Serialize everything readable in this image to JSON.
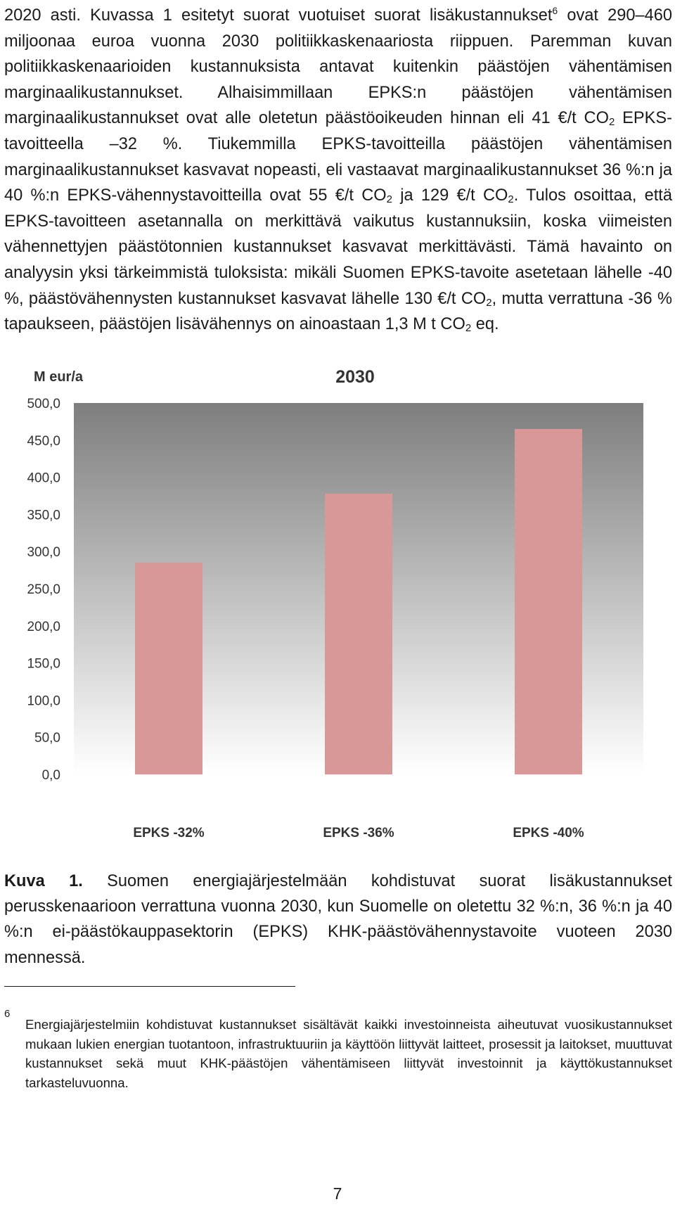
{
  "body": {
    "p1": "2020 asti. Kuvassa 1 esitetyt suorat vuotuiset suorat lisäkustannukset",
    "p1_sup": "6",
    "p2": " ovat 290–460 miljoonaa euroa vuonna 2030 politiikkaskenaariosta riippuen. Paremman kuvan politiikkaskenaarioiden kustannuksista antavat kuitenkin päästöjen vähentämisen marginaalikustannukset. Alhaisimmillaan EPKS:n päästöjen vähentämisen marginaalikustannukset ovat alle oletetun päästöoikeuden hinnan eli 41 €/t CO",
    "sub": "2",
    "p3": " EPKS-tavoitteella –32 %. Tiukemmilla EPKS-tavoitteilla päästöjen vähentämisen marginaalikustannukset kasvavat nopeasti, eli vastaavat marginaalikustannukset 36 %:n ja 40 %:n EPKS-vähennystavoitteilla ovat 55 €/t CO",
    "p4": " ja 129 €/t CO",
    "p5": ". Tulos osoittaa, että EPKS-tavoitteen asetannalla on merkittävä vaikutus kustannuksiin, koska viimeisten vähennettyjen päästötonnien kustannukset kasvavat merkittävästi. Tämä havainto on analyysin yksi tärkeimmistä tuloksista: mikäli Suomen EPKS-tavoite asetetaan lähelle -40 %, päästövähennysten kustannukset kasvavat lähelle 130 €/t CO",
    "p6": ", mutta verrattuna -36 % tapaukseen, päästöjen lisävähennys on ainoastaan 1,3 M t CO",
    "p7": " eq."
  },
  "chart_data": {
    "type": "bar",
    "title": "2030",
    "ylabel": "M eur/a",
    "xlabel": "",
    "categories": [
      "EPKS -32%",
      "EPKS -36%",
      "EPKS -40%"
    ],
    "values": [
      285,
      378,
      465
    ],
    "ylim": [
      0,
      500
    ],
    "yticks": [
      "0,0",
      "50,0",
      "100,0",
      "150,0",
      "200,0",
      "250,0",
      "300,0",
      "350,0",
      "400,0",
      "450,0",
      "500,0"
    ],
    "grid": false,
    "legend": "none",
    "colors": {
      "bar": "#d89898",
      "plot_top": "#7e7e7e",
      "plot_bottom": "#ffffff",
      "text": "#333333"
    }
  },
  "caption": {
    "label": "Kuva 1.",
    "text": " Suomen energiajärjestelmään kohdistuvat suorat lisäkustannukset perusskenaarioon verrattuna vuonna 2030, kun Suomelle on oletettu 32 %:n, 36 %:n ja 40 %:n ei-päästökauppasektorin (EPKS) KHK-päästövähennystavoite vuoteen 2030 mennessä."
  },
  "footnote": {
    "number": "6",
    "text": "Energiajärjestelmiin kohdistuvat kustannukset sisältävät kaikki investoinneista aiheutuvat vuosikustannukset mukaan lukien energian tuotantoon, infrastruktuuriin ja käyttöön liittyvät laitteet, prosessit ja laitokset, muuttuvat kustannukset sekä muut KHK-päästöjen vähentämiseen liittyvät investoinnit ja käyttökustannukset tarkasteluvuonna."
  },
  "page_number": "7"
}
